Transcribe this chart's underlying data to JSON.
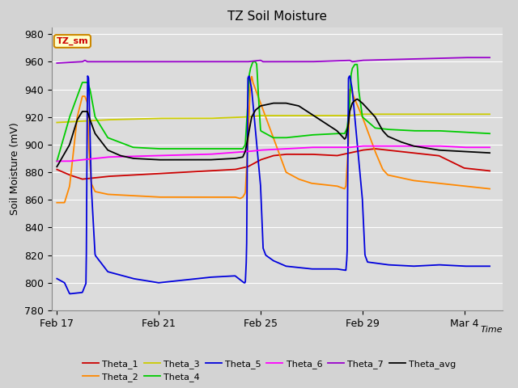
{
  "title": "TZ Soil Moisture",
  "ylabel": "Soil Moisture (mV)",
  "xlabel": "Time",
  "ylim": [
    780,
    985
  ],
  "yticks": [
    780,
    800,
    820,
    840,
    860,
    880,
    900,
    920,
    940,
    960,
    980
  ],
  "bg_color": "#dcdcdc",
  "fig_bg": "#d3d3d3",
  "series_colors": {
    "Theta_1": "#cc0000",
    "Theta_2": "#ff8800",
    "Theta_3": "#cccc00",
    "Theta_4": "#00cc00",
    "Theta_5": "#0000dd",
    "Theta_6": "#ff00ff",
    "Theta_7": "#9900cc",
    "Theta_avg": "#000000"
  },
  "label_box": {
    "text": "TZ_sm",
    "facecolor": "#ffffcc",
    "edgecolor": "#cc8800",
    "textcolor": "#cc0000"
  },
  "x_tick_labels": [
    "Feb 17",
    "Feb 21",
    "Feb 25",
    "Feb 29",
    "Mar 4"
  ],
  "x_tick_positions": [
    0,
    4,
    8,
    12,
    16
  ],
  "xlim": [
    -0.2,
    17.5
  ]
}
